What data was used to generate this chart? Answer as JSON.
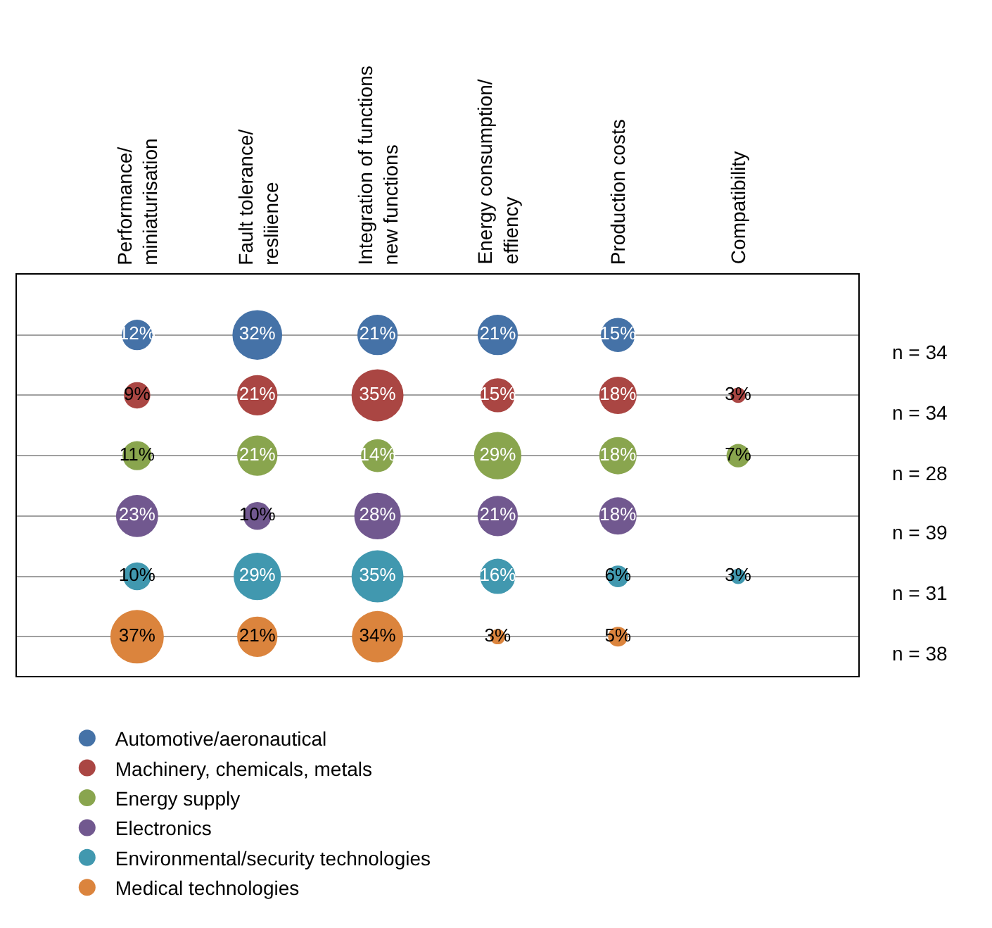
{
  "chart_data": {
    "type": "other",
    "categories": [
      "Performance/ miniaturisation",
      "Fault tolerance/ resliience",
      "Integration of functions new functions",
      "Energy consumption/ effiency",
      "Production costs",
      "Compatibility"
    ],
    "y_categories": [
      "n = 34",
      "n = 34",
      "n = 28",
      "n = 39",
      "n = 31",
      "n = 38"
    ],
    "series": [
      {
        "name": "Automotive/aeronautical",
        "color": "#4572a7",
        "values": [
          12,
          32,
          21,
          21,
          15,
          null
        ],
        "value_labels": [
          "12%",
          "32%",
          "21%",
          "21%",
          "15%",
          null
        ]
      },
      {
        "name": "Machinery, chemicals, metals",
        "color": "#aa4643",
        "values": [
          9,
          21,
          35,
          15,
          18,
          3
        ],
        "value_labels": [
          "9%",
          "21%",
          "35%",
          "15%",
          "18%",
          "3%"
        ]
      },
      {
        "name": "Energy supply",
        "color": "#89a54e",
        "values": [
          11,
          21,
          14,
          29,
          18,
          7
        ],
        "value_labels": [
          "11%",
          "21%",
          "14%",
          "29%",
          "18%",
          "7%"
        ]
      },
      {
        "name": "Electronics",
        "color": "#71588f",
        "values": [
          23,
          10,
          28,
          21,
          18,
          null
        ],
        "value_labels": [
          "23%",
          "10%",
          "28%",
          "21%",
          "18%",
          null
        ]
      },
      {
        "name": "Environmental/security technologies",
        "color": "#4198af",
        "values": [
          10,
          29,
          35,
          16,
          6,
          3
        ],
        "value_labels": [
          "10%",
          "29%",
          "35%",
          "16%",
          "6%",
          "3%"
        ]
      },
      {
        "name": "Medical technologies",
        "color": "#db843d",
        "values": [
          37,
          21,
          34,
          3,
          5,
          null
        ],
        "value_labels": [
          "37%",
          "21%",
          "34%",
          "3%",
          "5%",
          null
        ]
      }
    ],
    "legend": "bottom"
  }
}
